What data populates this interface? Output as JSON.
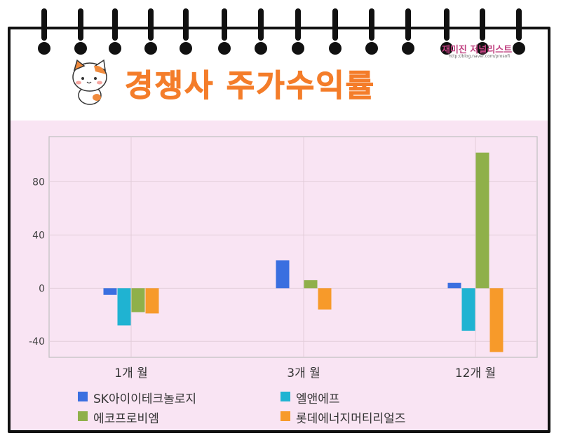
{
  "header": {
    "title": "경쟁사 주가수익률",
    "watermark": "재미진 저널리스트",
    "watermark_url": "http://blog.naver.com/prosofi"
  },
  "colors": {
    "accent": "#f47d2a",
    "background": "#f9e4f3",
    "series": [
      "#3a6fe0",
      "#1fb3d2",
      "#8fb04a",
      "#f79a2a"
    ]
  },
  "chart_data": {
    "type": "bar",
    "categories": [
      "1개 월",
      "3개 월",
      "12개 월"
    ],
    "series": [
      {
        "name": "SK아이이테크놀로지",
        "values": [
          -5,
          21,
          4
        ]
      },
      {
        "name": "엘앤에프",
        "values": [
          -28,
          null,
          -32
        ]
      },
      {
        "name": "에코프로비엠",
        "values": [
          -18,
          6,
          102
        ]
      },
      {
        "name": "롯데에너지머티리얼즈",
        "values": [
          -19,
          -16,
          -48
        ]
      }
    ],
    "yticks": [
      80,
      40,
      0,
      -40
    ],
    "ylim": [
      -52,
      114
    ],
    "grid": true,
    "legend_position": "bottom"
  }
}
